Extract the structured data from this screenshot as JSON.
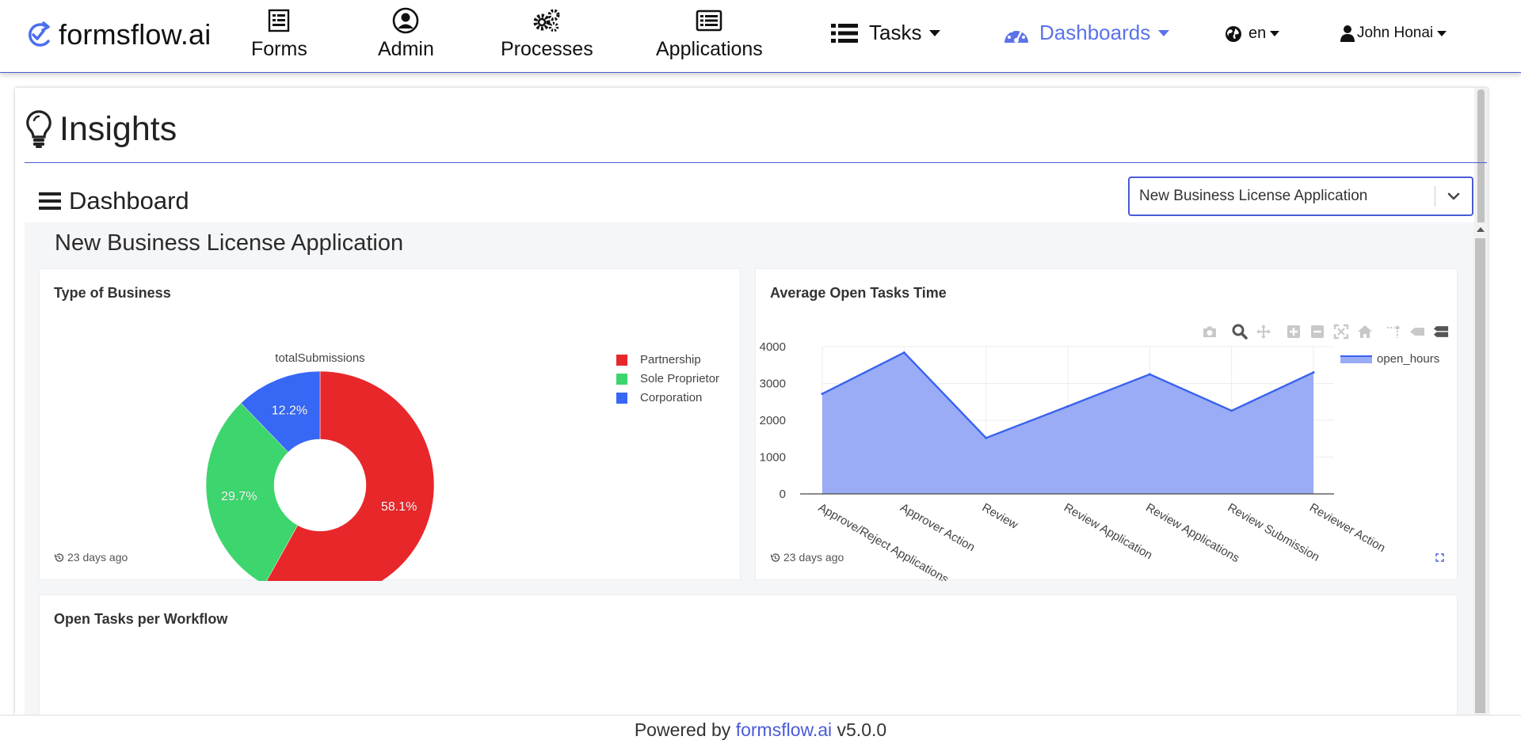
{
  "brand": {
    "name": "formsflow.ai",
    "logo_icon": "refresh-check-icon"
  },
  "nav": {
    "items": [
      {
        "label": "Forms",
        "icon": "form-icon"
      },
      {
        "label": "Admin",
        "icon": "user-circle-icon"
      },
      {
        "label": "Processes",
        "icon": "gears-icon"
      },
      {
        "label": "Applications",
        "icon": "list-alt-icon"
      }
    ],
    "tasks": {
      "label": "Tasks",
      "icon": "list-icon"
    },
    "dashboards": {
      "label": "Dashboards",
      "icon": "dashboard-gauge-icon",
      "active": true
    },
    "language": {
      "label": "en",
      "icon": "globe-icon"
    },
    "user": {
      "label": "John Honai",
      "icon": "user-icon"
    }
  },
  "page": {
    "title": "Insights",
    "section_label": "Dashboard",
    "dashboard_select": {
      "value": "New Business License Application"
    }
  },
  "dashboard": {
    "title": "New Business License Application",
    "cards": {
      "type_of_business": {
        "title": "Type of Business",
        "updated": "23 days ago"
      },
      "avg_open_tasks": {
        "title": "Average Open Tasks Time",
        "updated": "23 days ago"
      },
      "open_tasks_per_workflow": {
        "title": "Open Tasks per Workflow"
      }
    }
  },
  "chart_data": [
    {
      "type": "pie",
      "variant": "donut",
      "title": "totalSubmissions",
      "labels": [
        "Partnership",
        "Sole Proprietor",
        "Corporation"
      ],
      "values": [
        58.1,
        29.7,
        12.2
      ],
      "value_labels": [
        "58.1%",
        "29.7%",
        "12.2%"
      ],
      "colors": [
        "#e8272a",
        "#3dd56d",
        "#3767f5"
      ],
      "legend": "top-right"
    },
    {
      "type": "area",
      "categories": [
        "Approve/Reject Applications",
        "Approver Action",
        "Review",
        "Review Application",
        "Review Applications",
        "Review Submission",
        "Reviewer Action"
      ],
      "series": [
        {
          "name": "open_hours",
          "values": [
            2720,
            3840,
            1520,
            2380,
            3250,
            2260,
            3300
          ]
        }
      ],
      "ylim": [
        0,
        4000
      ],
      "yticks": [
        0,
        1000,
        2000,
        3000,
        4000
      ],
      "grid": true,
      "legend": "top-right",
      "fill_color": "#9aacf5",
      "line_color": "#3a62f0"
    }
  ],
  "footer": {
    "prefix": "Powered by",
    "link": "formsflow.ai",
    "version": "v5.0.0"
  }
}
